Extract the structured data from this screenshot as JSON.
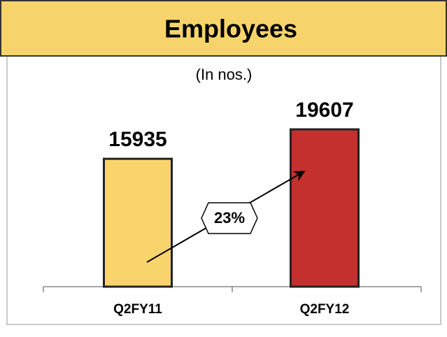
{
  "chart_data": {
    "type": "bar",
    "title": "Employees",
    "subtitle": "(In nos.)",
    "categories": [
      "Q2FY11",
      "Q2FY12"
    ],
    "values": [
      15935,
      19607
    ],
    "colors": [
      "#f9d46c",
      "#c4302d"
    ],
    "annotation": "23%"
  }
}
